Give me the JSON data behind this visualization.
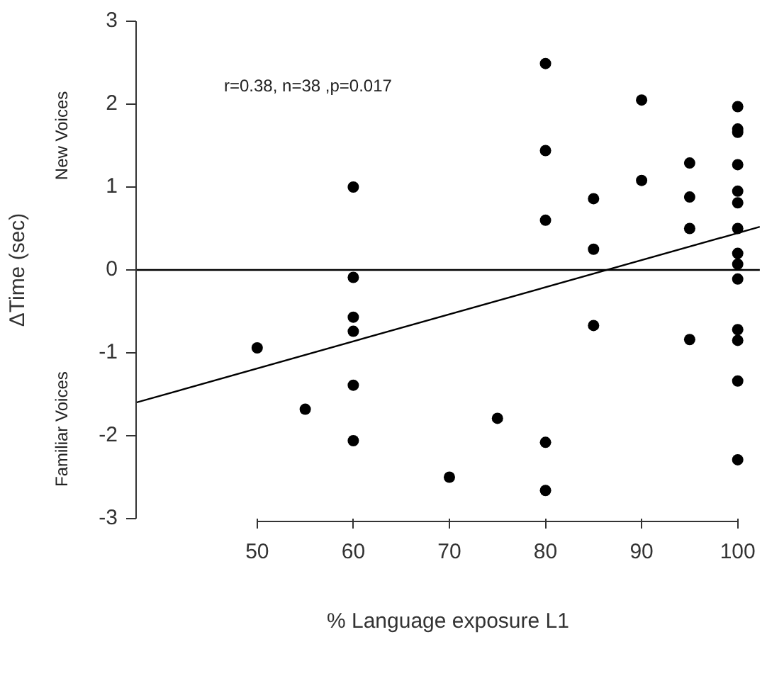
{
  "chart_data": {
    "type": "scatter",
    "xlabel": "% Language exposure L1",
    "ylabel": "ΔTime (sec)",
    "annotations": [
      "r=0.38, n=38 ,p=0.017",
      "New Voices",
      "Familiar Voices"
    ],
    "xlim": [
      37.4,
      102.3
    ],
    "xticks": [
      50,
      60,
      70,
      80,
      90,
      100
    ],
    "ylim": [
      -3,
      3
    ],
    "yticks": [
      -3,
      -2,
      -1,
      0,
      1,
      2,
      3
    ],
    "grid": false,
    "legend": false,
    "marker": "circle",
    "series": [
      {
        "color": "#000000",
        "x": [
          50,
          55,
          60,
          60,
          60,
          60,
          60,
          60,
          70,
          75,
          80,
          80,
          80,
          80,
          80,
          85,
          85,
          85,
          90,
          90,
          95,
          95,
          95,
          95,
          100,
          100,
          100,
          100,
          100,
          100,
          100,
          100,
          100,
          100,
          100,
          100,
          100,
          100
        ],
        "values": [
          -0.94,
          -1.68,
          1.0,
          -0.09,
          -0.57,
          -0.74,
          -1.39,
          -2.06,
          -2.5,
          -1.79,
          2.49,
          1.44,
          0.6,
          -2.08,
          -2.66,
          0.86,
          0.25,
          -0.67,
          2.05,
          1.08,
          1.29,
          0.88,
          0.5,
          -0.84,
          1.97,
          1.7,
          1.66,
          1.27,
          0.95,
          0.81,
          0.5,
          0.2,
          0.07,
          -0.11,
          -0.72,
          -0.85,
          -1.34,
          -2.29
        ]
      },
      {
        "type": "line",
        "color": "#000000",
        "marker": "none",
        "line_style": "solid",
        "x": [
          37.4,
          102.3
        ],
        "values": [
          -1.6,
          0.52
        ]
      }
    ],
    "ref_lines": [
      {
        "axis": "y",
        "value": 0,
        "color": "#000000",
        "line_style": "solid"
      }
    ]
  }
}
